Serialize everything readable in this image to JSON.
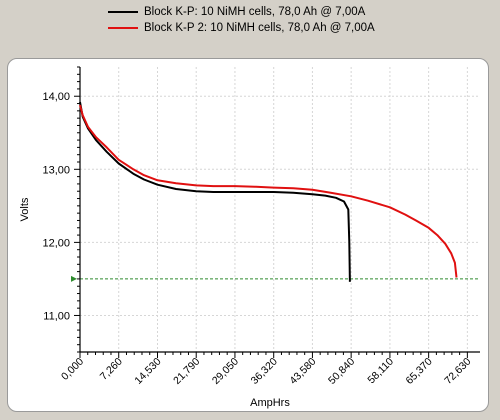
{
  "chart_data": {
    "type": "line",
    "xlabel": "AmpHrs",
    "ylabel": "Volts",
    "xlim": [
      0,
      75
    ],
    "ylim": [
      10.5,
      14.4
    ],
    "x_ticks": [
      0,
      7.26,
      14.53,
      21.79,
      29.05,
      36.32,
      43.58,
      50.84,
      58.11,
      65.37,
      72.63
    ],
    "x_tick_labels": [
      "0,000",
      "7,260",
      "14,530",
      "21,790",
      "29,050",
      "36,320",
      "43,580",
      "50,840",
      "58,110",
      "65,370",
      "72,630"
    ],
    "y_ticks": [
      11,
      12,
      13,
      14
    ],
    "y_tick_labels": [
      "11,00",
      "12,00",
      "13,00",
      "14,00"
    ],
    "grid": true,
    "legend_position": "top",
    "reference_line": {
      "y": 11.5,
      "color": "#2e8b2e",
      "style": "dashed"
    },
    "series": [
      {
        "name": "Block K-P: 10 NiMH cells, 78,0 Ah @ 7,00A",
        "color": "#000000",
        "points": [
          [
            0,
            13.92
          ],
          [
            0.5,
            13.72
          ],
          [
            1.5,
            13.56
          ],
          [
            3,
            13.4
          ],
          [
            5,
            13.24
          ],
          [
            7.26,
            13.08
          ],
          [
            10,
            12.94
          ],
          [
            12,
            12.86
          ],
          [
            14.53,
            12.79
          ],
          [
            18,
            12.73
          ],
          [
            21.79,
            12.7
          ],
          [
            25,
            12.69
          ],
          [
            29.05,
            12.69
          ],
          [
            33,
            12.69
          ],
          [
            36.32,
            12.69
          ],
          [
            40,
            12.68
          ],
          [
            43.58,
            12.66
          ],
          [
            46,
            12.64
          ],
          [
            48,
            12.61
          ],
          [
            49.5,
            12.56
          ],
          [
            50.3,
            12.45
          ],
          [
            50.5,
            12.0
          ],
          [
            50.6,
            11.46
          ]
        ]
      },
      {
        "name": "Block K-P 2: 10 NiMH cells, 78,0 Ah @ 7,00A",
        "color": "#e01010",
        "points": [
          [
            0,
            13.88
          ],
          [
            0.5,
            13.74
          ],
          [
            1.5,
            13.58
          ],
          [
            3,
            13.44
          ],
          [
            5,
            13.3
          ],
          [
            7.26,
            13.13
          ],
          [
            10,
            13.0
          ],
          [
            12,
            12.92
          ],
          [
            14.53,
            12.85
          ],
          [
            18,
            12.81
          ],
          [
            21.79,
            12.78
          ],
          [
            25,
            12.77
          ],
          [
            29.05,
            12.77
          ],
          [
            33,
            12.76
          ],
          [
            36.32,
            12.75
          ],
          [
            40,
            12.74
          ],
          [
            43.58,
            12.72
          ],
          [
            47,
            12.68
          ],
          [
            50.84,
            12.63
          ],
          [
            54,
            12.57
          ],
          [
            58.11,
            12.48
          ],
          [
            61,
            12.38
          ],
          [
            63,
            12.3
          ],
          [
            65.37,
            12.2
          ],
          [
            67,
            12.1
          ],
          [
            68.5,
            11.98
          ],
          [
            69.6,
            11.85
          ],
          [
            70.3,
            11.72
          ],
          [
            70.6,
            11.52
          ]
        ]
      }
    ]
  }
}
